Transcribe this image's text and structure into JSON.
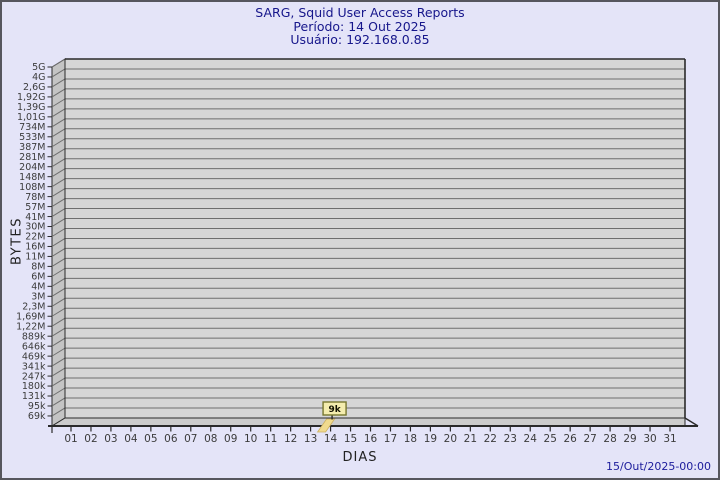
{
  "footer": {
    "timestamp": "15/Out/2025-00:00"
  },
  "style": {
    "page_bg": "#e4e4f8",
    "page_border": "#56565e",
    "title_color": "#16168b",
    "timestamp_color": "#1c1c9c",
    "plot_bg": "#d6d6d6",
    "wall_color": "#c4c4c4",
    "floor_color": "#cccccc",
    "grid_color": "#6e6e6e",
    "frame_color": "#2a2a2a",
    "axis_text_color": "#3c3c3c",
    "bar_fill": "#f0da8e",
    "bar_edge": "#cdb160",
    "tooltip_fill": "#f4edae",
    "tooltip_border": "#77772f",
    "tooltip_text": "#111100"
  },
  "chart_data": {
    "type": "bar",
    "title": "SARG, Squid User Access Reports",
    "subtitle": [
      "Período: 14 Out 2025",
      "Usuário: 192.168.0.85"
    ],
    "xlabel": "DIAS",
    "ylabel": "BYTES",
    "y_scale": "logarithmic",
    "grid": true,
    "legend": false,
    "y_tick_labels": [
      "5G",
      "4G",
      "2,6G",
      "1,92G",
      "1,39G",
      "1,01G",
      "734M",
      "533M",
      "387M",
      "281M",
      "204M",
      "148M",
      "108M",
      "78M",
      "57M",
      "41M",
      "30M",
      "22M",
      "16M",
      "11M",
      "8M",
      "6M",
      "4M",
      "3M",
      "2,3M",
      "1,69M",
      "1,22M",
      "889k",
      "646k",
      "469k",
      "341k",
      "247k",
      "180k",
      "131k",
      "95k",
      "69k"
    ],
    "categories": [
      "01",
      "02",
      "03",
      "04",
      "05",
      "06",
      "07",
      "08",
      "09",
      "10",
      "11",
      "12",
      "13",
      "14",
      "15",
      "16",
      "17",
      "18",
      "19",
      "20",
      "21",
      "22",
      "23",
      "24",
      "25",
      "26",
      "27",
      "28",
      "29",
      "30",
      "31"
    ],
    "values": [
      0,
      0,
      0,
      0,
      0,
      0,
      0,
      0,
      0,
      0,
      0,
      0,
      0,
      9000,
      0,
      0,
      0,
      0,
      0,
      0,
      0,
      0,
      0,
      0,
      0,
      0,
      0,
      0,
      0,
      0,
      0
    ],
    "annotations": [
      {
        "x": "14",
        "label": "9k",
        "value_bytes": 9000
      }
    ]
  }
}
